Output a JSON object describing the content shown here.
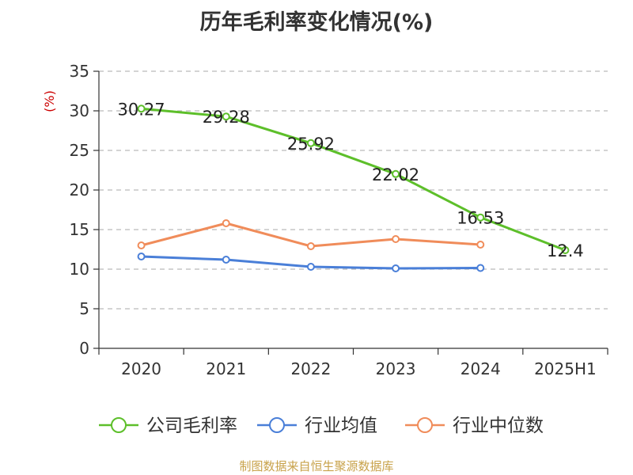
{
  "chart_data": {
    "type": "line",
    "title": "历年毛利率变化情况(%)",
    "ylabel": "(%)",
    "categories": [
      "2020",
      "2021",
      "2022",
      "2023",
      "2024",
      "2025H1"
    ],
    "ylim": [
      0,
      35
    ],
    "yticks": [
      0,
      5,
      10,
      15,
      20,
      25,
      30,
      35
    ],
    "grid": "horizontal-dashed",
    "legend_position": "bottom",
    "series": [
      {
        "name": "公司毛利率",
        "color": "#5dbf2a",
        "values": [
          30.27,
          29.28,
          25.92,
          22.02,
          16.53,
          12.4
        ],
        "labels": [
          "30.27",
          "29.28",
          "25.92",
          "22.02",
          "16.53",
          "12.4"
        ]
      },
      {
        "name": "行业均值",
        "color": "#4a7fd8",
        "values": [
          11.6,
          11.2,
          10.3,
          10.1,
          10.15,
          null
        ]
      },
      {
        "name": "行业中位数",
        "color": "#f08c5a",
        "values": [
          13.0,
          15.8,
          12.9,
          13.8,
          13.1,
          null
        ]
      }
    ]
  },
  "source": "制图数据来自恒生聚源数据库"
}
